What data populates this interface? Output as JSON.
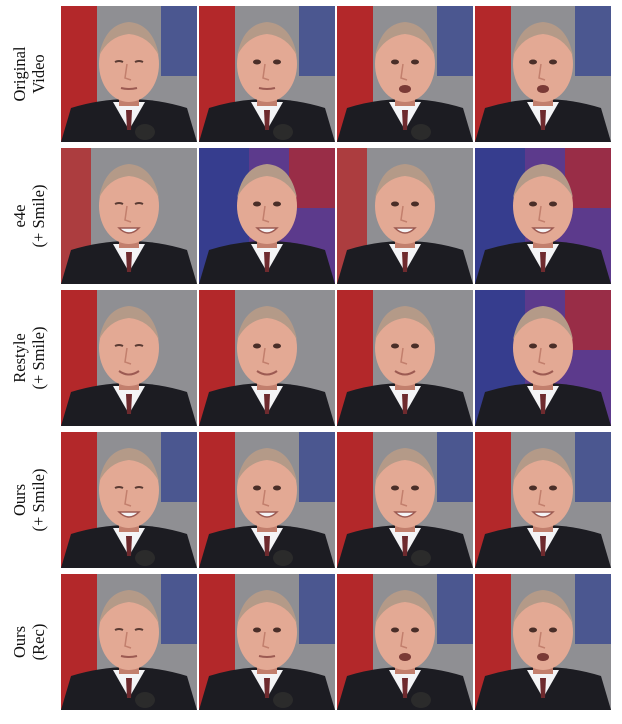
{
  "rows": [
    {
      "label_line1": "Original",
      "label_line2": "Video"
    },
    {
      "label_line1": "e4e",
      "label_line2": "(+ Smile)"
    },
    {
      "label_line1": "Restyle",
      "label_line2": "(+ Smile)"
    },
    {
      "label_line1": "Ours",
      "label_line2": "(+ Smile)"
    },
    {
      "label_line1": "Ours",
      "label_line2": "(Rec)"
    }
  ],
  "colors": {
    "flag_red": "#b3282a",
    "flag_blue": "#2d3f8f",
    "backdrop_gray": "#8f8f93",
    "purple_haze": "#5c3a8c",
    "skin": "#e3a994",
    "skin_shadow": "#c27f6d",
    "hair": "#b49a88",
    "suit": "#1c1c22",
    "shirt": "#f4f4f6",
    "tie": "#6e2a2e"
  }
}
